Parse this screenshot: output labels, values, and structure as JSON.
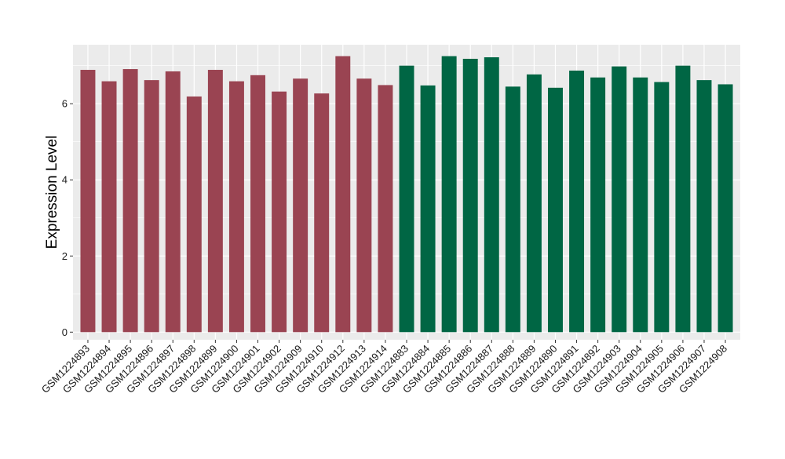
{
  "chart_data": {
    "type": "bar",
    "title": "",
    "xlabel": "",
    "ylabel": "Expression Level",
    "ylim": [
      -0.2,
      7.55
    ],
    "y_ticks": [
      0,
      2,
      4,
      6
    ],
    "y_tick_labels": [
      "0",
      "2",
      "4",
      "6"
    ],
    "grid": true,
    "legend": "none",
    "colors": {
      "group_1": "#9A4452",
      "group_2": "#006644",
      "panel_bg": "#EBEBEB",
      "grid": "#FFFFFF"
    },
    "categories": [
      "GSM1224893",
      "GSM1224894",
      "GSM1224895",
      "GSM1224896",
      "GSM1224897",
      "GSM1224898",
      "GSM1224899",
      "GSM1224900",
      "GSM1224901",
      "GSM1224902",
      "GSM1224909",
      "GSM1224910",
      "GSM1224912",
      "GSM1224913",
      "GSM1224914",
      "GSM1224883",
      "GSM1224884",
      "GSM1224885",
      "GSM1224886",
      "GSM1224887",
      "GSM1224888",
      "GSM1224889",
      "GSM1224890",
      "GSM1224891",
      "GSM1224892",
      "GSM1224903",
      "GSM1224904",
      "GSM1224905",
      "GSM1224906",
      "GSM1224907",
      "GSM1224908"
    ],
    "values": [
      6.89,
      6.59,
      6.91,
      6.62,
      6.85,
      6.19,
      6.89,
      6.59,
      6.75,
      6.32,
      6.66,
      6.27,
      7.25,
      6.66,
      6.49,
      7.0,
      6.48,
      7.25,
      7.18,
      7.22,
      6.45,
      6.77,
      6.42,
      6.87,
      6.69,
      6.98,
      6.69,
      6.57,
      7.0,
      6.62,
      6.51
    ],
    "groups": [
      1,
      1,
      1,
      1,
      1,
      1,
      1,
      1,
      1,
      1,
      1,
      1,
      1,
      1,
      1,
      2,
      2,
      2,
      2,
      2,
      2,
      2,
      2,
      2,
      2,
      2,
      2,
      2,
      2,
      2,
      2
    ]
  }
}
